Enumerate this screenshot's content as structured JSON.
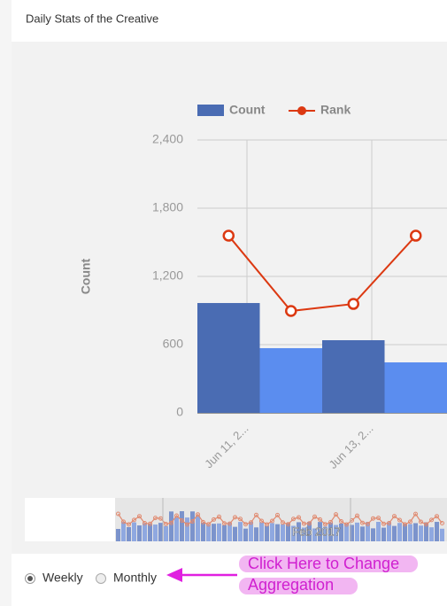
{
  "header": {
    "title": "Daily Stats of the Creative"
  },
  "chart_data": {
    "type": "bar_line",
    "categories": [
      "Jun 11, 2...",
      null,
      "Jun 13, 2...",
      null
    ],
    "series": [
      {
        "name": "Count",
        "color": "#4a6cb3",
        "bar_colors": [
          "#4a6cb3",
          "#5b8def",
          "#4a6cb3",
          "#5b8def"
        ],
        "values": [
          966,
          569,
          639,
          444
        ]
      },
      {
        "name": "Rank",
        "color": "#dc3912",
        "values": [
          1558,
          896,
          958,
          1558
        ]
      }
    ],
    "y_label": "Count",
    "ylim": [
      0,
      2400
    ],
    "yticks": [
      0,
      600,
      {
        "value": 1200,
        "label": "1,200"
      },
      {
        "value": 1800,
        "label": "1,800"
      },
      {
        "value": 2400,
        "label": "2,400"
      }
    ],
    "grid": true,
    "legend": "top"
  },
  "navigator": {
    "label": "Feb 2017"
  },
  "controls": {
    "options": [
      "Weekly",
      "Monthly"
    ],
    "selected": 0
  },
  "annotation": {
    "lines": [
      "Click Here to Change",
      "Aggregation"
    ]
  }
}
